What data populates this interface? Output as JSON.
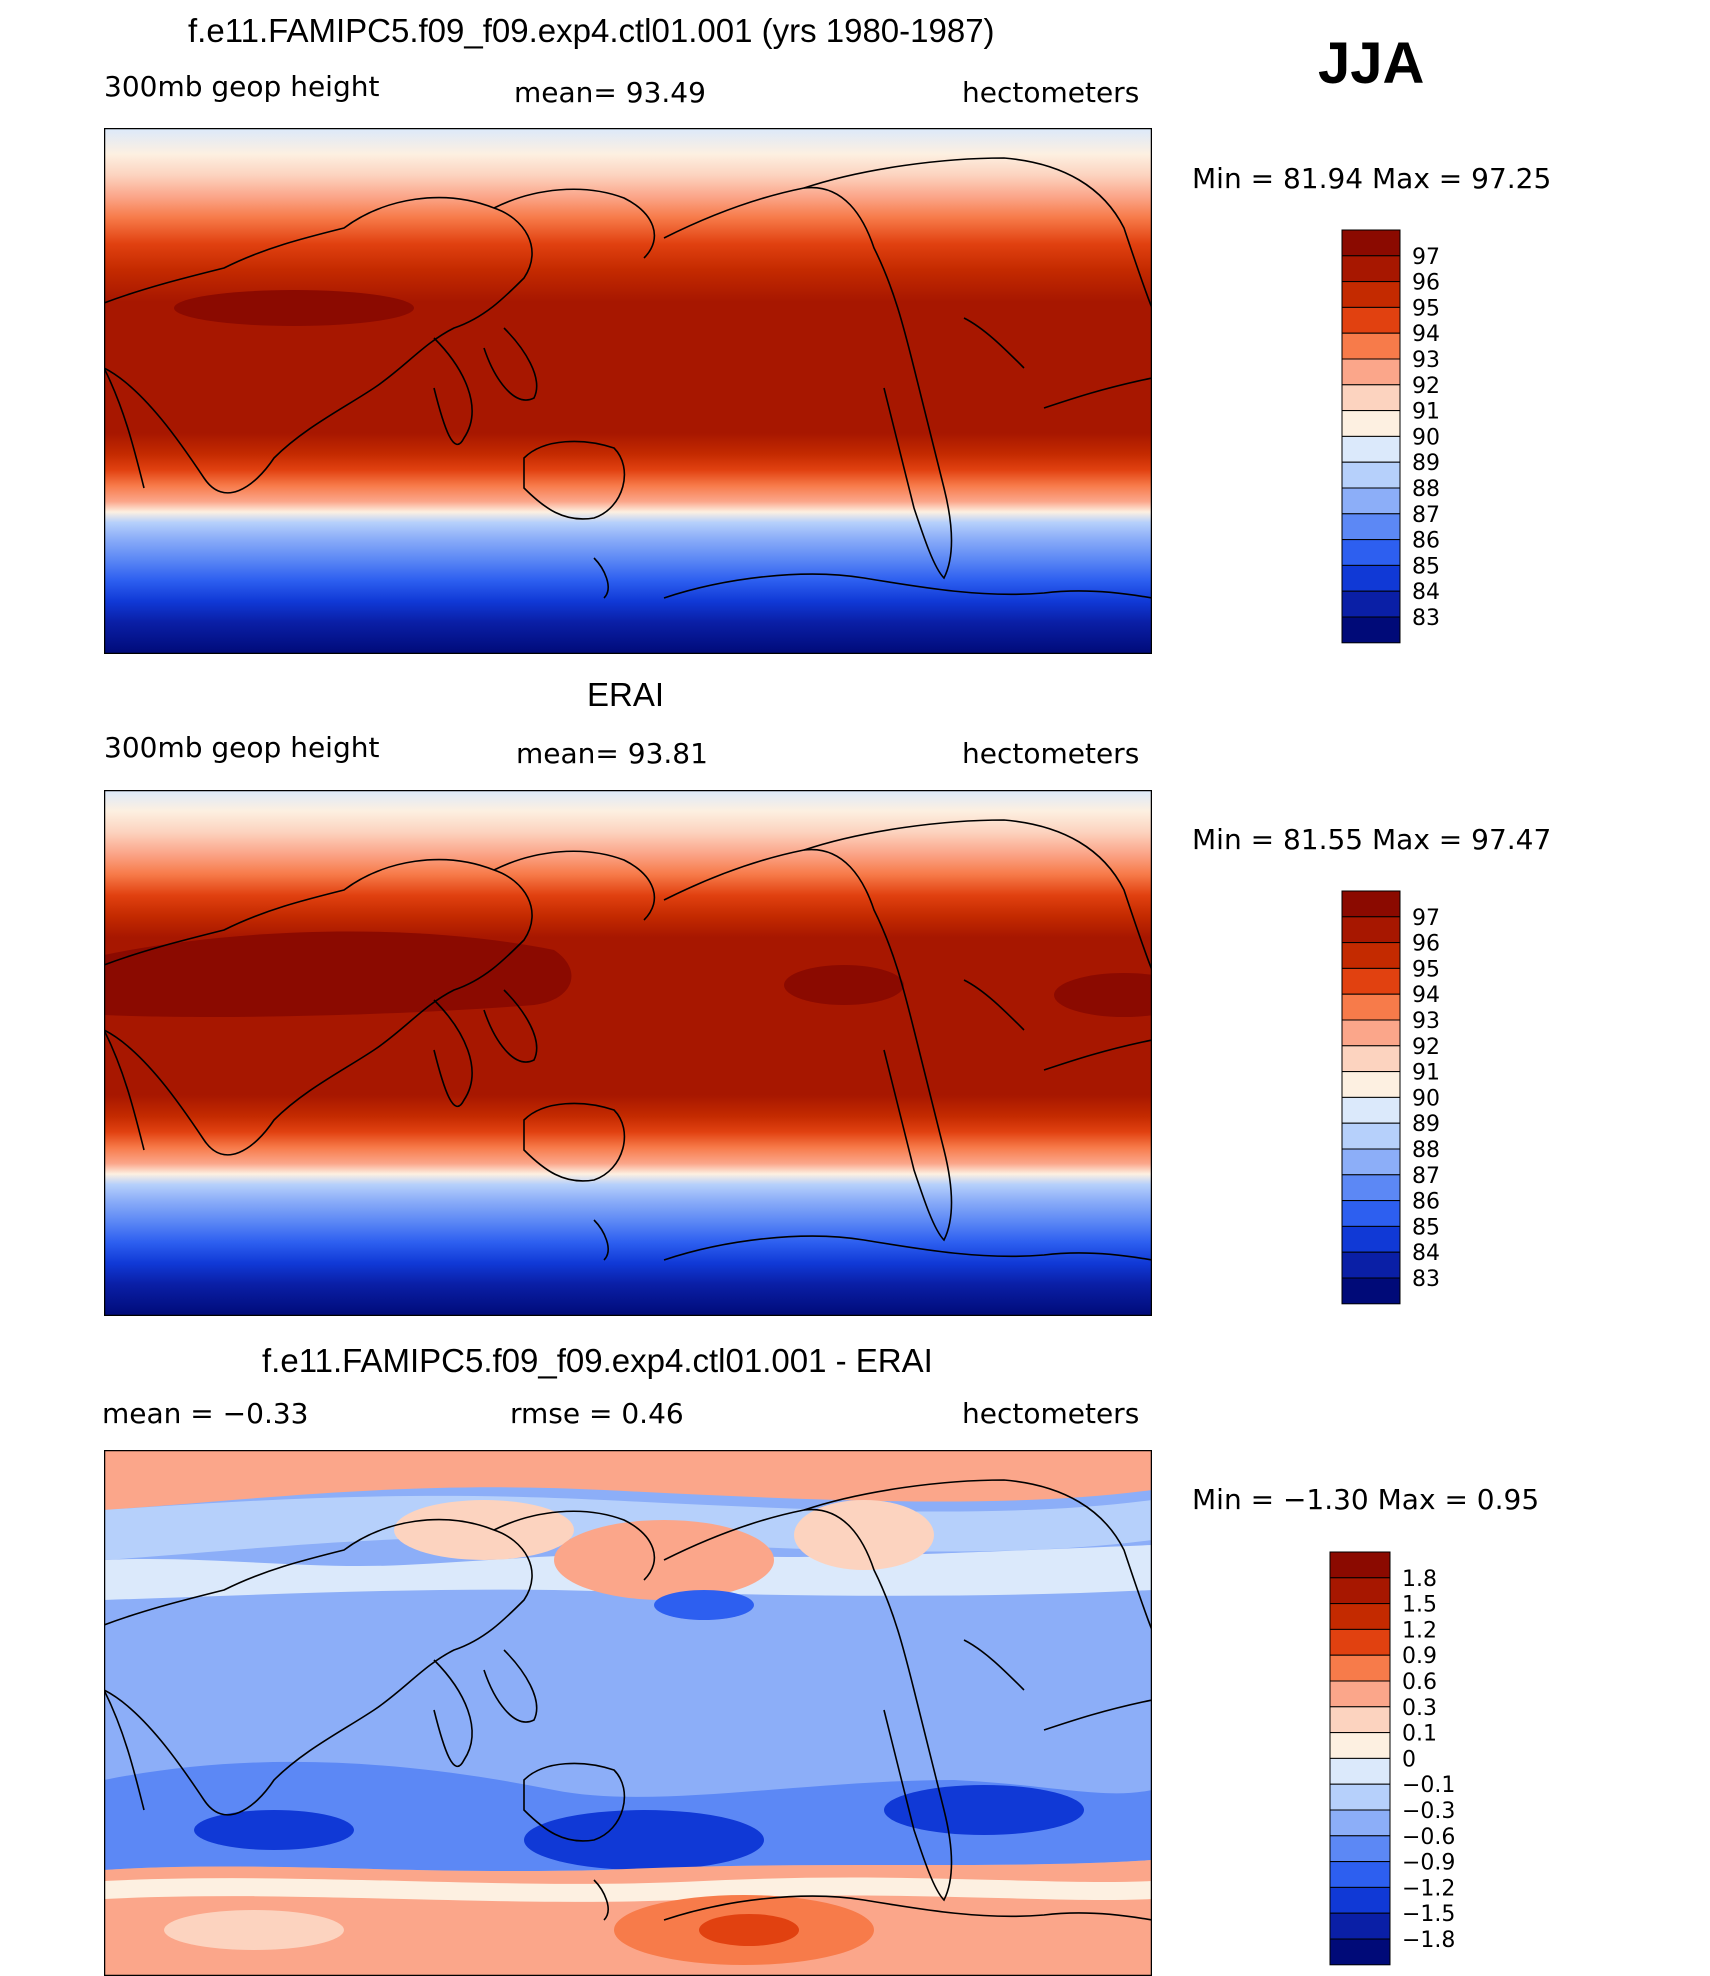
{
  "season": "JJA",
  "panels": [
    {
      "title": "f.e11.FAMIPC5.f09_f09.exp4.ctl01.001 (yrs 1980-1987)",
      "left_label": "300mb  geop  height",
      "center_label": "mean=   93.49",
      "right_label": "hectometers",
      "minmax": "Min  =    81.94  Max  =    97.25",
      "colorbar_labels": [
        "97",
        "96",
        "95",
        "94",
        "93",
        "92",
        "91",
        "90",
        "89",
        "88",
        "87",
        "86",
        "85",
        "84",
        "83"
      ],
      "colorbar_colors": [
        "#8b0a00",
        "#a71700",
        "#c42a00",
        "#e14110",
        "#f77b4a",
        "#fba68a",
        "#fcd3bf",
        "#fdf0e1",
        "#dbe9fb",
        "#b6d0fb",
        "#8caef8",
        "#5c88f5",
        "#2d5ff0",
        "#1039d6",
        "#0a1fa6",
        "#000a78"
      ]
    },
    {
      "title": "ERAI",
      "left_label": "300mb  geop  height",
      "center_label": "mean=   93.81",
      "right_label": "hectometers",
      "minmax": "Min  =    81.55  Max  =    97.47",
      "colorbar_labels": [
        "97",
        "96",
        "95",
        "94",
        "93",
        "92",
        "91",
        "90",
        "89",
        "88",
        "87",
        "86",
        "85",
        "84",
        "83"
      ],
      "colorbar_colors": [
        "#8b0a00",
        "#a71700",
        "#c42a00",
        "#e14110",
        "#f77b4a",
        "#fba68a",
        "#fcd3bf",
        "#fdf0e1",
        "#dbe9fb",
        "#b6d0fb",
        "#8caef8",
        "#5c88f5",
        "#2d5ff0",
        "#1039d6",
        "#0a1fa6",
        "#000a78"
      ]
    },
    {
      "title": "f.e11.FAMIPC5.f09_f09.exp4.ctl01.001 - ERAI",
      "left_label": "mean  =    −0.33",
      "center_label": "rmse  =     0.46",
      "right_label": "hectometers",
      "minmax": "Min  =    −1.30  Max  =     0.95",
      "colorbar_labels": [
        "1.8",
        "1.5",
        "1.2",
        "0.9",
        "0.6",
        "0.3",
        "0.1",
        "0",
        "−0.1",
        "−0.3",
        "−0.6",
        "−0.9",
        "−1.2",
        "−1.5",
        "−1.8"
      ],
      "colorbar_colors": [
        "#8b0a00",
        "#a71700",
        "#c42a00",
        "#e14110",
        "#f77b4a",
        "#fba68a",
        "#fcd3bf",
        "#fdf0e1",
        "#dbe9fb",
        "#b6d0fb",
        "#8caef8",
        "#5c88f5",
        "#2d5ff0",
        "#1039d6",
        "#0a1fa6",
        "#000a78"
      ]
    }
  ]
}
